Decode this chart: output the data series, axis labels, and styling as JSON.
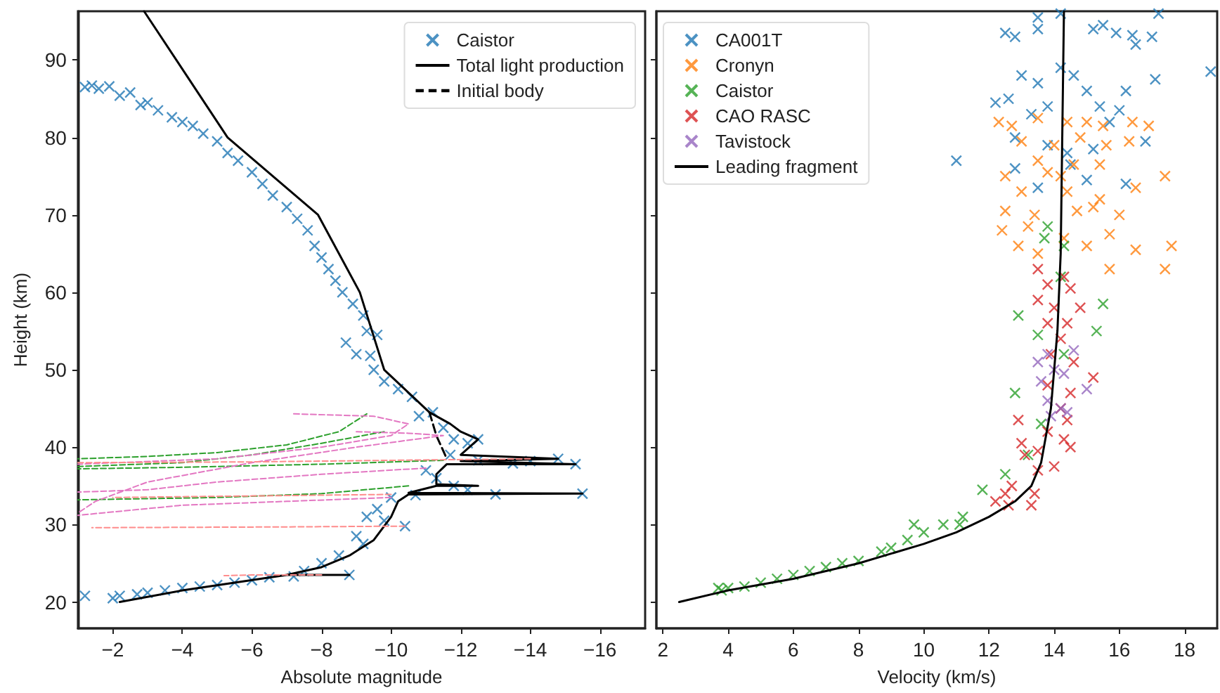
{
  "chart_data": [
    {
      "type": "line",
      "xlabel": "Absolute magnitude",
      "ylabel": "Height (km)",
      "xlim": [
        -1,
        -17.3
      ],
      "xticks": [
        -2,
        -4,
        -6,
        -8,
        -10,
        -12,
        -14,
        -16
      ],
      "ylim": [
        16.6,
        96.3
      ],
      "yticks": [
        20,
        30,
        40,
        50,
        60,
        70,
        80,
        90
      ],
      "grid": false,
      "legend": "top right",
      "series": [
        {
          "name": "Caistor",
          "type": "scatter",
          "marker": "cross",
          "color": "#1f77b4",
          "x": [
            -1.2,
            -1.4,
            -1.6,
            -1.9,
            -2.2,
            -2.5,
            -2.8,
            -3.0,
            -3.3,
            -3.7,
            -4.0,
            -4.3,
            -4.6,
            -5.0,
            -5.3,
            -5.6,
            -6.0,
            -6.3,
            -6.6,
            -7.0,
            -7.3,
            -7.6,
            -7.8,
            -8.0,
            -8.2,
            -8.4,
            -8.6,
            -8.9,
            -9.2,
            -9.3,
            -9.6,
            -8.7,
            -9.0,
            -9.4,
            -9.5,
            -9.8,
            -10.2,
            -10.6,
            -10.8,
            -11.2,
            -11.5,
            -11.8,
            -12.2,
            -12.5,
            -11.7,
            -11.0,
            -11.3,
            -11.8,
            -12.2,
            -13.0,
            -15.5,
            -15.3,
            -14.8,
            -14.0,
            -13.5,
            -12.5,
            -10.7,
            -10.0,
            -9.6,
            -9.3,
            -9.8,
            -9.0,
            -9.2,
            -10.4,
            -8.5,
            -8.0,
            -7.5,
            -7.2,
            -8.8,
            -6.5,
            -6.0,
            -5.5,
            -5.0,
            -4.5,
            -4.0,
            -3.5,
            -3.0,
            -2.7,
            -2.2,
            -2.0,
            -1.2
          ],
          "values": [
            86.5,
            86.7,
            86.3,
            86.6,
            85.4,
            85.8,
            84.2,
            84.5,
            83.5,
            82.6,
            82.0,
            81.5,
            80.5,
            79.5,
            78.0,
            77.0,
            75.5,
            74.0,
            72.5,
            71.0,
            69.5,
            68.0,
            66.0,
            64.5,
            63.0,
            61.5,
            60.0,
            58.5,
            57.0,
            55.0,
            54.5,
            53.5,
            52.0,
            51.8,
            50.0,
            48.5,
            47.5,
            46.5,
            44.0,
            44.5,
            42.5,
            41.0,
            40.5,
            41.0,
            39.0,
            37.0,
            36.0,
            35.0,
            34.5,
            33.9,
            34.0,
            37.8,
            38.5,
            38.2,
            37.9,
            38.3,
            33.8,
            33.5,
            32.0,
            31.0,
            30.5,
            28.5,
            27.5,
            29.8,
            26.0,
            25.0,
            24.0,
            23.3,
            23.5,
            23.2,
            22.8,
            22.5,
            22.2,
            22.0,
            21.8,
            21.5,
            21.2,
            21.0,
            20.8,
            20.5,
            20.8
          ]
        },
        {
          "name": "Total light production",
          "marker": "none",
          "line_style": "solid",
          "color": "#000000",
          "x": [
            -2.2,
            -4,
            -5.5,
            -7,
            -8.8,
            -7,
            -8,
            -8.8,
            -9.5,
            -10,
            -10.2,
            -10.5,
            -15.5,
            -10.5,
            -11.3,
            -12.5,
            -11.3,
            -11.3,
            -11.6,
            -15.3,
            -12,
            -14.8,
            -12,
            -12.5,
            -12,
            -11.7,
            -11.1,
            -9.8,
            -9.1,
            -7.9,
            -5.3,
            -2.9
          ],
          "values": [
            20,
            21.5,
            22.5,
            23.5,
            23.5,
            23.5,
            24.5,
            26,
            28,
            31,
            33,
            33.9,
            34,
            34.1,
            35,
            35,
            35.2,
            36.5,
            37.8,
            37.8,
            38.2,
            38.5,
            39,
            41,
            42,
            43,
            44.5,
            50,
            60,
            70,
            80,
            96.3
          ]
        },
        {
          "name": "Initial body",
          "marker": "none",
          "line_style": "dashed",
          "color": "#000000",
          "x": [
            -11.1,
            -11.3,
            -11.6
          ],
          "values": [
            44.5,
            41.5,
            38.5
          ]
        },
        {
          "marker": "none",
          "line_style": "dashed",
          "color": "#2ca02c",
          "x": [
            -9.3,
            -8.5,
            -7,
            -5,
            -3,
            -1
          ],
          "values": [
            44.3,
            42,
            40.3,
            39.3,
            38.8,
            38.5
          ]
        },
        {
          "marker": "none",
          "line_style": "dashed",
          "color": "#2ca02c",
          "x": [
            -9.8,
            -8,
            -6,
            -4,
            -1
          ],
          "values": [
            42,
            40.5,
            39,
            38,
            37.5
          ]
        },
        {
          "marker": "none",
          "line_style": "dashed",
          "color": "#2ca02c",
          "x": [
            -11.5,
            -8,
            -4,
            -1
          ],
          "values": [
            38.3,
            37.8,
            37.4,
            37.2
          ]
        },
        {
          "marker": "none",
          "line_style": "dashed",
          "color": "#2ca02c",
          "x": [
            -10.5,
            -8,
            -5,
            -1
          ],
          "values": [
            35,
            34,
            33.5,
            33.2
          ]
        },
        {
          "marker": "none",
          "line_style": "dashed",
          "color": "#e377c2",
          "x": [
            -7.2,
            -9.5,
            -10.5,
            -10,
            -8,
            -5,
            -1
          ],
          "values": [
            44.3,
            44,
            43,
            41.5,
            40,
            38.5,
            37.8
          ]
        },
        {
          "marker": "none",
          "line_style": "dashed",
          "color": "#e377c2",
          "x": [
            -9,
            -10.5,
            -11.5,
            -9,
            -6,
            -3,
            -1.5,
            -1
          ],
          "values": [
            42,
            41.8,
            41.5,
            40,
            38,
            35.5,
            33,
            31.5
          ]
        },
        {
          "marker": "none",
          "line_style": "dashed",
          "color": "#e377c2",
          "x": [
            -11,
            -8,
            -5,
            -3,
            -1
          ],
          "values": [
            37.3,
            36.5,
            35.5,
            34.5,
            34.2
          ]
        },
        {
          "marker": "none",
          "line_style": "dashed",
          "color": "#e377c2",
          "x": [
            -10,
            -7,
            -4,
            -1
          ],
          "values": [
            33.5,
            33,
            32.5,
            31.2
          ]
        },
        {
          "marker": "none",
          "line_style": "dashed",
          "color": "#ff8c8c",
          "x": [
            -14,
            -10,
            -6,
            -1
          ],
          "values": [
            38.5,
            38.3,
            38.1,
            38
          ]
        },
        {
          "marker": "none",
          "line_style": "dashed",
          "color": "#ff8c8c",
          "x": [
            -10.4,
            -7,
            -1.4
          ],
          "values": [
            29.8,
            29.7,
            29.6
          ]
        },
        {
          "marker": "none",
          "line_style": "dashed",
          "color": "#ff8c8c",
          "x": [
            -10,
            -6,
            -2
          ],
          "values": [
            33.9,
            33.7,
            33.5
          ]
        },
        {
          "marker": "none",
          "line_style": "dashed",
          "color": "#ff8c8c",
          "x": [
            -8,
            -6,
            -5.2
          ],
          "values": [
            23.5,
            23.5,
            23.4
          ]
        }
      ]
    },
    {
      "type": "line",
      "xlabel": "Velocity (km/s)",
      "xlim": [
        1.8,
        19
      ],
      "xticks": [
        2,
        4,
        6,
        8,
        10,
        12,
        14,
        16,
        18
      ],
      "ylim": [
        16.6,
        96.3
      ],
      "yticks": [
        20,
        30,
        40,
        50,
        60,
        70,
        80,
        90
      ],
      "tick_labels": "x",
      "grid": false,
      "legend": "top left",
      "series": [
        {
          "name": "CA001T",
          "type": "scatter",
          "marker": "cross",
          "color": "#1f77b4",
          "x": [
            12.5,
            12.8,
            13.5,
            13.5,
            14.2,
            15.2,
            15.5,
            15.9,
            16.4,
            16.5,
            17.2,
            17.0,
            18.8,
            13.0,
            13.5,
            14.2,
            14.6,
            15.0,
            16.2,
            17.1,
            12.2,
            12.6,
            13.3,
            13.8,
            15.4,
            15.7,
            16.0,
            12.8,
            13.8,
            14.4,
            15.2,
            16.8,
            11.0,
            12.8,
            14.5,
            15.0,
            16.2,
            13.5
          ],
          "values": [
            93.5,
            93,
            94,
            95.5,
            96,
            94,
            94.5,
            93.5,
            93.2,
            92,
            96,
            93,
            88.5,
            88,
            87,
            89,
            88,
            86,
            86,
            87.5,
            84.5,
            85,
            83,
            84,
            84,
            82,
            83.5,
            80,
            79,
            78,
            78.5,
            79.5,
            77,
            76,
            76.5,
            74.5,
            74,
            73.5
          ]
        },
        {
          "name": "Cronyn",
          "type": "scatter",
          "marker": "cross",
          "color": "#ff7f0e",
          "x": [
            12.3,
            12.7,
            13.5,
            14.4,
            15.0,
            15.5,
            16.4,
            16.9,
            13.0,
            14.0,
            14.8,
            15.6,
            16.3,
            13.5,
            14.6,
            15.4,
            12.5,
            13.8,
            14.2,
            17.4,
            13.0,
            14.4,
            15.4,
            16.5,
            12.5,
            13.4,
            14.7,
            15.2,
            16.0,
            12.4,
            13.2,
            14.3,
            15.7,
            12.9,
            13.5,
            15.0,
            16.5,
            17.6,
            17.4,
            15.7
          ],
          "values": [
            82,
            81.5,
            82.5,
            82,
            82,
            81.5,
            82,
            81.5,
            79.5,
            79,
            80,
            79,
            79.5,
            77,
            76.5,
            76.5,
            75,
            75.5,
            75,
            75,
            73,
            73,
            72,
            73.5,
            70.5,
            70,
            70.5,
            71,
            70,
            68,
            68.5,
            67,
            67.5,
            66,
            65,
            66,
            65.5,
            66,
            63,
            63
          ]
        },
        {
          "name": "Caistor",
          "type": "scatter",
          "marker": "cross",
          "color": "#2ca02c",
          "x": [
            13.8,
            13.7,
            14.3,
            14.2,
            15.5,
            12.9,
            15.3,
            13.5,
            14.3,
            12.8,
            13.6,
            13.2,
            12.5,
            11.8,
            11.2,
            11.1,
            10.6,
            9.7,
            10.0,
            9.5,
            9.0,
            8.7,
            8.0,
            7.5,
            7.0,
            6.5,
            6.0,
            5.5,
            5.0,
            4.5,
            4.0,
            3.8,
            3.7
          ],
          "values": [
            68.5,
            67,
            66,
            62,
            58.5,
            57,
            55,
            54.5,
            52,
            47,
            43,
            39,
            36.5,
            34.5,
            31,
            30,
            30,
            30,
            29,
            28,
            27,
            26.5,
            25.3,
            25,
            24.5,
            24,
            23.5,
            23,
            22.5,
            22,
            21.8,
            21.5,
            21.8
          ]
        },
        {
          "name": "CAO RASC",
          "type": "scatter",
          "marker": "cross",
          "color": "#d62728",
          "x": [
            13.5,
            14.3,
            13.8,
            14.5,
            13.5,
            14.0,
            14.8,
            13.8,
            14.4,
            14.2,
            13.9,
            14.6,
            15.2,
            13.8,
            14.5,
            14.2,
            14.4,
            12.9,
            13.8,
            14.3,
            13.5,
            14.5,
            13.0,
            13.1,
            13.5,
            14.0,
            12.7,
            12.5,
            12.2,
            13.4,
            12.6,
            13.3
          ],
          "values": [
            63,
            62,
            61,
            60.5,
            59,
            58,
            58,
            56,
            56,
            54,
            52,
            51,
            49,
            48,
            47,
            45,
            43.5,
            43.5,
            42,
            41,
            39.5,
            40,
            40.5,
            39,
            37,
            37.5,
            35,
            34,
            33,
            34,
            32.5,
            32.5
          ]
        },
        {
          "name": "Tavistock",
          "type": "scatter",
          "marker": "cross",
          "color": "#9467bd",
          "x": [
            13.5,
            13.8,
            14.6,
            14.0,
            13.6,
            14.3,
            15.0,
            13.8,
            14.2,
            14.4,
            13.9
          ],
          "values": [
            51,
            52,
            52.5,
            50,
            48.5,
            49.5,
            47.5,
            46,
            45,
            44.5,
            44
          ]
        },
        {
          "name": "Leading fragment",
          "marker": "none",
          "line_style": "solid",
          "color": "#000000",
          "x": [
            2.5,
            4,
            6,
            8,
            10,
            11,
            12,
            12.8,
            13.3,
            13.6,
            13.9,
            14.1,
            14.2,
            14.3
          ],
          "values": [
            20,
            21.5,
            23,
            25,
            27.5,
            29,
            31,
            33,
            35,
            38,
            45,
            55,
            65,
            96.3
          ]
        }
      ]
    }
  ]
}
